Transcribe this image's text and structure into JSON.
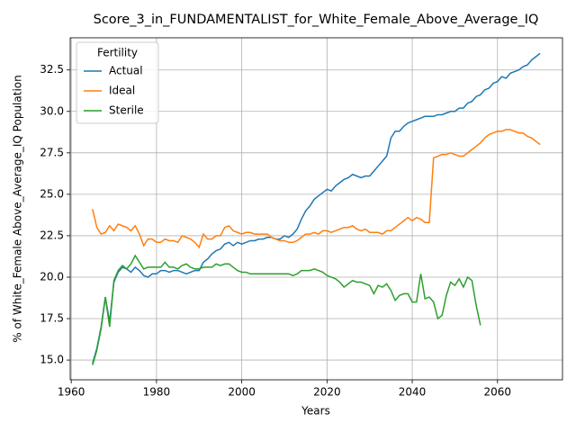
{
  "chart_data": {
    "type": "line",
    "title": "Score_3_in_FUNDAMENTALIST_for_White_Female_Above_Average_IQ",
    "x_label": "Years",
    "y_label": "% of White_Female Above_Average_IQ Population",
    "legend_title": "Fertility",
    "legend_position": "upper left",
    "grid": true,
    "xlim": [
      1959.75,
      2075.25
    ],
    "ylim": [
      13.81,
      34.44
    ],
    "xticks": [
      1960,
      1980,
      2000,
      2020,
      2040,
      2060
    ],
    "yticks": [
      {
        "value": 15,
        "label": "15.0"
      },
      17.5,
      {
        "value": 20,
        "label": "20.0"
      },
      22.5,
      {
        "value": 25,
        "label": "25.0"
      },
      27.5,
      {
        "value": 30,
        "label": "30.0"
      },
      32.5
    ],
    "x": [
      1965,
      1966,
      1967,
      1968,
      1969,
      1970,
      1971,
      1972,
      1973,
      1974,
      1975,
      1976,
      1977,
      1978,
      1979,
      1980,
      1981,
      1982,
      1983,
      1984,
      1985,
      1986,
      1987,
      1988,
      1989,
      1990,
      1991,
      1992,
      1993,
      1994,
      1995,
      1996,
      1997,
      1998,
      1999,
      2000,
      2001,
      2002,
      2003,
      2004,
      2005,
      2006,
      2007,
      2008,
      2009,
      2010,
      2011,
      2012,
      2013,
      2014,
      2015,
      2016,
      2017,
      2018,
      2019,
      2020,
      2021,
      2022,
      2023,
      2024,
      2025,
      2026,
      2027,
      2028,
      2029,
      2030,
      2031,
      2032,
      2033,
      2034,
      2035,
      2036,
      2037,
      2038,
      2039,
      2040,
      2041,
      2042,
      2043,
      2044,
      2045,
      2046,
      2047,
      2048,
      2049,
      2050,
      2051,
      2052,
      2053,
      2054,
      2055,
      2056,
      2057,
      2058,
      2059,
      2060,
      2061,
      2062,
      2063,
      2064,
      2065,
      2066,
      2067,
      2068,
      2069,
      2070
    ],
    "series": [
      {
        "name": "Actual",
        "color": "#1f77b4",
        "values": [
          14.8,
          15.7,
          17.0,
          18.8,
          17.3,
          19.7,
          20.3,
          20.6,
          20.5,
          20.3,
          20.6,
          20.4,
          20.1,
          20.0,
          20.2,
          20.2,
          20.4,
          20.4,
          20.3,
          20.4,
          20.4,
          20.3,
          20.2,
          20.3,
          20.4,
          20.4,
          20.9,
          21.1,
          21.4,
          21.6,
          21.7,
          22.0,
          22.1,
          21.9,
          22.1,
          22.0,
          22.1,
          22.2,
          22.2,
          22.3,
          22.3,
          22.4,
          22.4,
          22.3,
          22.3,
          22.5,
          22.4,
          22.6,
          22.9,
          23.5,
          24.0,
          24.3,
          24.7,
          24.9,
          25.1,
          25.3,
          25.2,
          25.5,
          25.7,
          25.9,
          26.0,
          26.2,
          26.1,
          26.0,
          26.1,
          26.1,
          26.4,
          26.7,
          27.0,
          27.3,
          28.4,
          28.8,
          28.8,
          29.1,
          29.3,
          29.4,
          29.5,
          29.6,
          29.7,
          29.7,
          29.7,
          29.8,
          29.8,
          29.9,
          30.0,
          30.0,
          30.2,
          30.2,
          30.5,
          30.6,
          30.9,
          31.0,
          31.3,
          31.4,
          31.7,
          31.8,
          32.1,
          32.0,
          32.3,
          32.4,
          32.5,
          32.7,
          32.8,
          33.1,
          33.3,
          33.5
        ]
      },
      {
        "name": "Ideal",
        "color": "#ff7f0e",
        "values": [
          24.1,
          23.0,
          22.6,
          22.7,
          23.1,
          22.8,
          23.2,
          23.1,
          23.0,
          22.8,
          23.1,
          22.6,
          21.9,
          22.3,
          22.3,
          22.1,
          22.1,
          22.3,
          22.2,
          22.2,
          22.1,
          22.5,
          22.4,
          22.3,
          22.1,
          21.8,
          22.6,
          22.3,
          22.3,
          22.5,
          22.5,
          23.0,
          23.1,
          22.8,
          22.7,
          22.6,
          22.7,
          22.7,
          22.6,
          22.6,
          22.6,
          22.6,
          22.4,
          22.3,
          22.2,
          22.2,
          22.1,
          22.1,
          22.2,
          22.4,
          22.6,
          22.6,
          22.7,
          22.6,
          22.8,
          22.8,
          22.7,
          22.8,
          22.9,
          23.0,
          23.0,
          23.1,
          22.9,
          22.8,
          22.9,
          22.7,
          22.7,
          22.7,
          22.6,
          22.8,
          22.8,
          23.0,
          23.2,
          23.4,
          23.6,
          23.4,
          23.6,
          23.5,
          23.3,
          23.3,
          27.2,
          27.3,
          27.4,
          27.4,
          27.5,
          27.4,
          27.3,
          27.3,
          27.5,
          27.7,
          27.9,
          28.1,
          28.4,
          28.6,
          28.7,
          28.8,
          28.8,
          28.9,
          28.9,
          28.8,
          28.7,
          28.7,
          28.5,
          28.4,
          28.2,
          28.0
        ]
      },
      {
        "name": "Sterile",
        "color": "#2ca02c",
        "values": [
          14.7,
          15.6,
          16.9,
          18.8,
          17.0,
          19.8,
          20.4,
          20.7,
          20.5,
          20.8,
          21.3,
          20.9,
          20.5,
          20.6,
          20.6,
          20.6,
          20.6,
          20.9,
          20.6,
          20.6,
          20.5,
          20.7,
          20.8,
          20.6,
          20.5,
          20.5,
          20.6,
          20.6,
          20.6,
          20.8,
          20.7,
          20.8,
          20.8,
          20.6,
          20.4,
          20.3,
          20.3,
          20.2,
          20.2,
          20.2,
          20.2,
          20.2,
          20.2,
          20.2,
          20.2,
          20.2,
          20.2,
          20.1,
          20.2,
          20.4,
          20.4,
          20.4,
          20.5,
          20.4,
          20.3,
          20.1,
          20.0,
          19.9,
          19.7,
          19.4,
          19.6,
          19.8,
          19.7,
          19.7,
          19.6,
          19.5,
          19.0,
          19.5,
          19.4,
          19.6,
          19.2,
          18.6,
          18.9,
          19.0,
          19.0,
          18.5,
          18.5,
          20.2,
          18.7,
          18.8,
          18.5,
          17.5,
          17.7,
          18.9,
          19.7,
          19.5,
          19.9,
          19.4,
          20.0,
          19.8,
          18.3,
          17.1,
          null,
          null,
          null,
          null,
          null,
          null,
          null,
          null,
          null,
          null,
          null,
          null,
          null,
          null
        ]
      }
    ]
  }
}
